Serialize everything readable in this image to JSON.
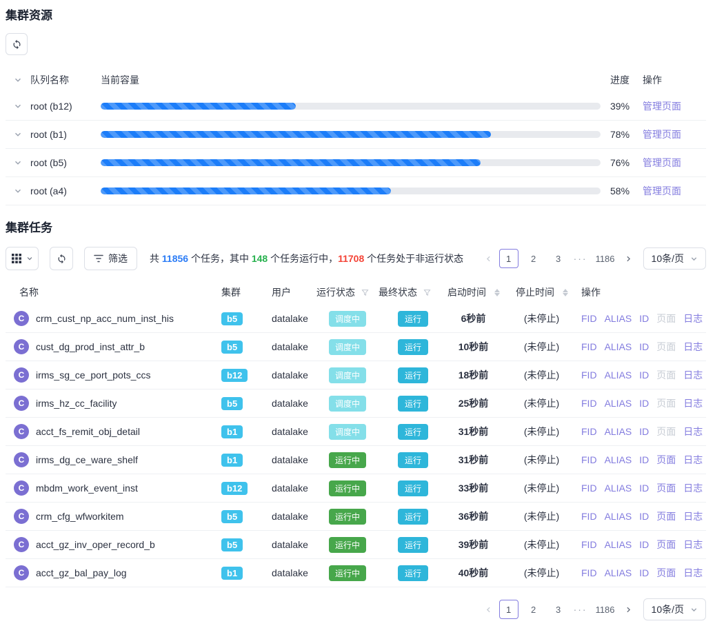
{
  "resources": {
    "title": "集群资源",
    "columns": {
      "queue": "队列名称",
      "capacity": "当前容量",
      "progress": "进度",
      "action": "操作"
    },
    "manage_label": "管理页面",
    "rows": [
      {
        "queue": "root (b12)",
        "percent": 39
      },
      {
        "queue": "root (b1)",
        "percent": 78
      },
      {
        "queue": "root (b5)",
        "percent": 76
      },
      {
        "queue": "root (a4)",
        "percent": 58
      }
    ]
  },
  "tasks": {
    "title": "集群任务",
    "toolbar": {
      "filter_label": "筛选",
      "summary": [
        {
          "text": "共 ",
          "color": ""
        },
        {
          "text": "11856",
          "color": "blue"
        },
        {
          "text": " 个任务，其中 ",
          "color": ""
        },
        {
          "text": "148",
          "color": "green"
        },
        {
          "text": " 个任务运行中，",
          "color": ""
        },
        {
          "text": "11708",
          "color": "red"
        },
        {
          "text": " 个任务处于非运行状态",
          "color": ""
        }
      ]
    },
    "pagination": {
      "pages": [
        "1",
        "2",
        "3"
      ],
      "active_page": "1",
      "ellipsis": "···",
      "last_page": "1186",
      "page_size_label": "10条/页"
    },
    "columns": {
      "name": "名称",
      "cluster": "集群",
      "user": "用户",
      "run_status": "运行状态",
      "final_status": "最终状态",
      "start_time": "启动时间",
      "stop_time": "停止时间",
      "action": "操作"
    },
    "op_labels": {
      "fid": "FID",
      "alias": "ALIAS",
      "id": "ID",
      "page": "页面",
      "log": "日志"
    },
    "avatar_letter": "C",
    "rows": [
      {
        "name": "crm_cust_np_acc_num_inst_his",
        "cluster": "b5",
        "user": "datalake",
        "run_status": "调度中",
        "run_state": "scheduling",
        "final_status": "运行",
        "start_time": "6秒前",
        "stop_time": "(未停止)",
        "page_enabled": false
      },
      {
        "name": "cust_dg_prod_inst_attr_b",
        "cluster": "b5",
        "user": "datalake",
        "run_status": "调度中",
        "run_state": "scheduling",
        "final_status": "运行",
        "start_time": "10秒前",
        "stop_time": "(未停止)",
        "page_enabled": false
      },
      {
        "name": "irms_sg_ce_port_pots_ccs",
        "cluster": "b12",
        "user": "datalake",
        "run_status": "调度中",
        "run_state": "scheduling",
        "final_status": "运行",
        "start_time": "18秒前",
        "stop_time": "(未停止)",
        "page_enabled": false
      },
      {
        "name": "irms_hz_cc_facility",
        "cluster": "b5",
        "user": "datalake",
        "run_status": "调度中",
        "run_state": "scheduling",
        "final_status": "运行",
        "start_time": "25秒前",
        "stop_time": "(未停止)",
        "page_enabled": false
      },
      {
        "name": "acct_fs_remit_obj_detail",
        "cluster": "b1",
        "user": "datalake",
        "run_status": "调度中",
        "run_state": "scheduling",
        "final_status": "运行",
        "start_time": "31秒前",
        "stop_time": "(未停止)",
        "page_enabled": false
      },
      {
        "name": "irms_dg_ce_ware_shelf",
        "cluster": "b1",
        "user": "datalake",
        "run_status": "运行中",
        "run_state": "running",
        "final_status": "运行",
        "start_time": "31秒前",
        "stop_time": "(未停止)",
        "page_enabled": true
      },
      {
        "name": "mbdm_work_event_inst",
        "cluster": "b12",
        "user": "datalake",
        "run_status": "运行中",
        "run_state": "running",
        "final_status": "运行",
        "start_time": "33秒前",
        "stop_time": "(未停止)",
        "page_enabled": true
      },
      {
        "name": "crm_cfg_wfworkitem",
        "cluster": "b5",
        "user": "datalake",
        "run_status": "运行中",
        "run_state": "running",
        "final_status": "运行",
        "start_time": "36秒前",
        "stop_time": "(未停止)",
        "page_enabled": true
      },
      {
        "name": "acct_gz_inv_oper_record_b",
        "cluster": "b5",
        "user": "datalake",
        "run_status": "运行中",
        "run_state": "running",
        "final_status": "运行",
        "start_time": "39秒前",
        "stop_time": "(未停止)",
        "page_enabled": true
      },
      {
        "name": "acct_gz_bal_pay_log",
        "cluster": "b1",
        "user": "datalake",
        "run_status": "运行中",
        "run_state": "running",
        "final_status": "运行",
        "start_time": "40秒前",
        "stop_time": "(未停止)",
        "page_enabled": true
      }
    ]
  },
  "colors": {
    "accent_purple": "#837cdf",
    "progress_blue": "#1c7df9",
    "summary_total": "#2b7cf6",
    "summary_running": "#27b14e",
    "summary_nonrunning": "#f44336",
    "badge_cluster": "#3fc2ec",
    "badge_scheduling": "#84dfe9",
    "badge_running": "#47a74b",
    "badge_final": "#2eb6da"
  }
}
